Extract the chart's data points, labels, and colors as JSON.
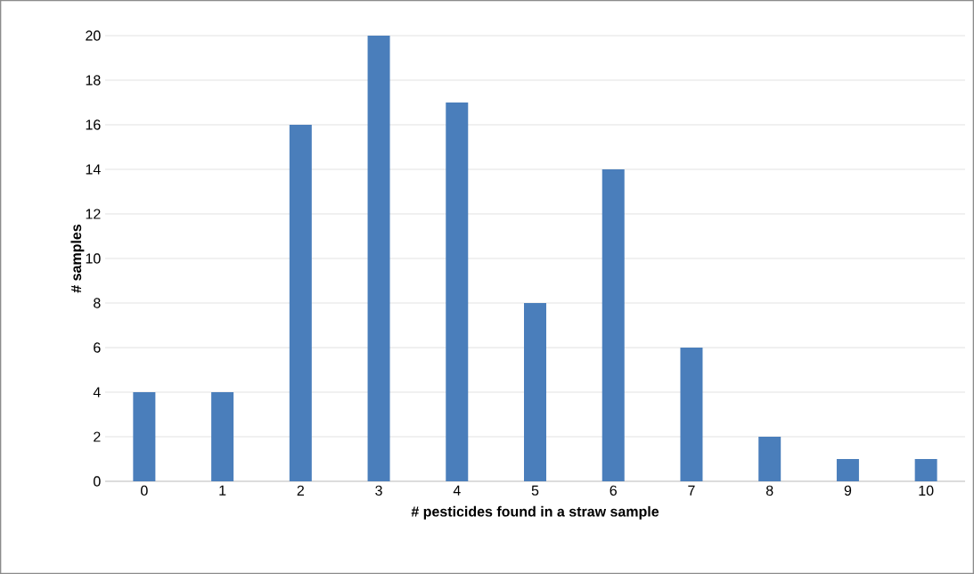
{
  "chart_data": {
    "type": "bar",
    "xlabel": "# pesticides found in a straw sample",
    "ylabel": "# samples",
    "categories": [
      "0",
      "1",
      "2",
      "3",
      "4",
      "5",
      "6",
      "7",
      "8",
      "9",
      "10"
    ],
    "values": [
      4,
      4,
      16,
      20,
      17,
      8,
      14,
      6,
      2,
      1,
      1
    ],
    "color": "#4a7ebb",
    "ylim": [
      0,
      20
    ],
    "yticks": [
      0,
      2,
      4,
      6,
      8,
      10,
      12,
      14,
      16,
      18,
      20
    ],
    "grid": "y"
  }
}
